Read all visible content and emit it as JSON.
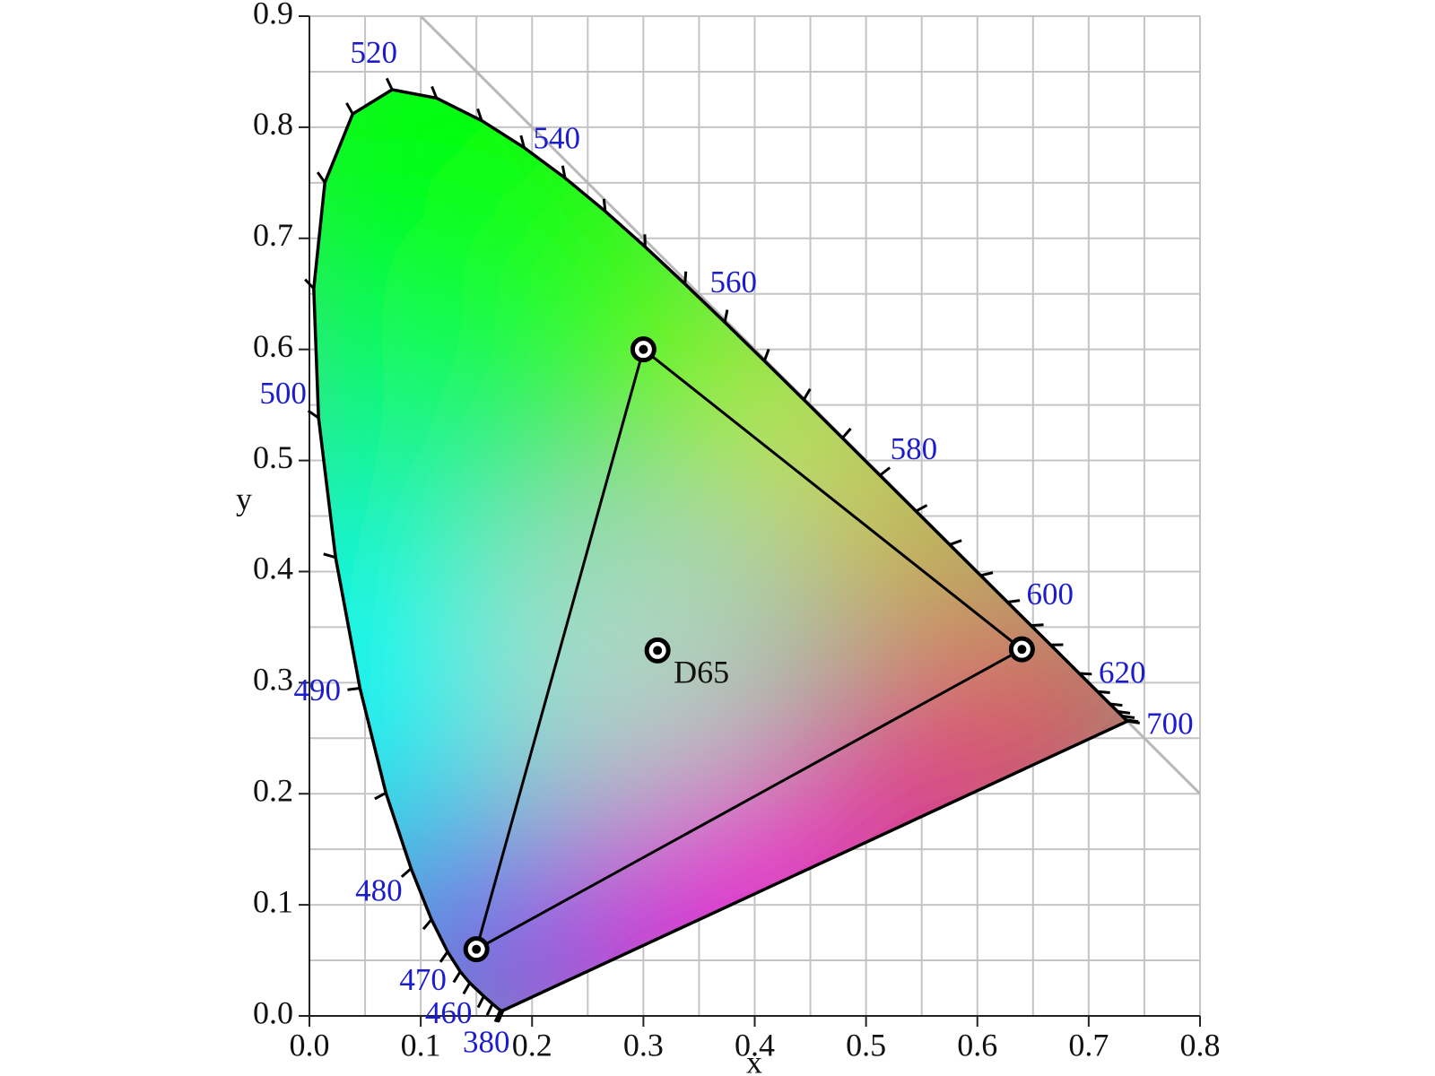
{
  "chart_data": {
    "type": "chromaticity",
    "x_label": "x",
    "y_label": "y",
    "xlim": [
      0,
      0.8
    ],
    "ylim": [
      0,
      0.9
    ],
    "xticks": [
      {
        "value": 0,
        "label": "0.0"
      },
      0.1,
      0.2,
      0.3,
      0.4,
      0.5,
      0.6,
      0.7,
      0.8
    ],
    "yticks": [
      {
        "value": 0,
        "label": "0.0"
      },
      0.1,
      0.2,
      0.3,
      0.4,
      0.5,
      0.6,
      0.7,
      0.8,
      0.9
    ],
    "grid": true,
    "spectral_locus": {
      "wavelengths": [
        380,
        400,
        420,
        440,
        450,
        460,
        465,
        470,
        475,
        480,
        485,
        490,
        495,
        500,
        505,
        510,
        515,
        520,
        525,
        530,
        535,
        540,
        545,
        550,
        555,
        560,
        565,
        570,
        575,
        580,
        585,
        590,
        595,
        600,
        605,
        610,
        620,
        630,
        640,
        650,
        660,
        680,
        700
      ],
      "x": [
        0.1741,
        0.1733,
        0.1714,
        0.1644,
        0.1566,
        0.144,
        0.1355,
        0.1241,
        0.1096,
        0.0913,
        0.0687,
        0.0454,
        0.0235,
        0.0082,
        0.0039,
        0.0139,
        0.0389,
        0.0743,
        0.1142,
        0.1547,
        0.1929,
        0.2296,
        0.2658,
        0.3016,
        0.3373,
        0.3731,
        0.4087,
        0.4441,
        0.4788,
        0.5125,
        0.5448,
        0.5752,
        0.6029,
        0.627,
        0.6482,
        0.6658,
        0.6915,
        0.7079,
        0.719,
        0.726,
        0.73,
        0.7334,
        0.7347
      ],
      "y": [
        0.005,
        0.0048,
        0.0051,
        0.0109,
        0.0177,
        0.0297,
        0.0399,
        0.0578,
        0.0868,
        0.1327,
        0.2007,
        0.295,
        0.4127,
        0.5384,
        0.6548,
        0.7502,
        0.812,
        0.8338,
        0.8262,
        0.8059,
        0.7816,
        0.7543,
        0.7243,
        0.6923,
        0.6589,
        0.6245,
        0.5896,
        0.5547,
        0.5202,
        0.4866,
        0.4544,
        0.4242,
        0.3965,
        0.3725,
        0.3514,
        0.334,
        0.3083,
        0.292,
        0.2809,
        0.274,
        0.27,
        0.2666,
        0.2653
      ]
    },
    "wavelength_labels": [
      380,
      460,
      470,
      480,
      490,
      500,
      520,
      540,
      560,
      580,
      600,
      620,
      700
    ],
    "label_color": "#1c1ccf",
    "gamut": {
      "x": [
        0.64,
        0.3,
        0.15
      ],
      "y": [
        0.33,
        0.6,
        0.06
      ]
    },
    "white_point": {
      "name": "D65",
      "x": 0.3127,
      "y": 0.329
    }
  }
}
